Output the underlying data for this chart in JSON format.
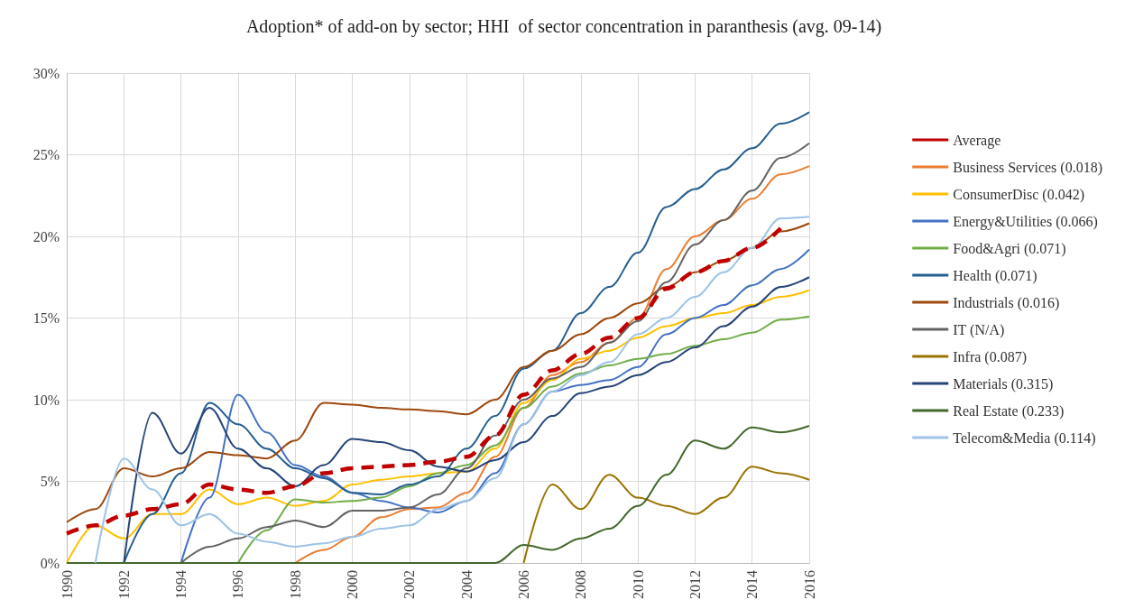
{
  "chart_data": {
    "type": "line",
    "title": "Adoption* of add-on by sector; HHI  of sector concentration in paranthesis (avg. 09-14)",
    "x": [
      1990,
      1991,
      1992,
      1993,
      1994,
      1995,
      1996,
      1997,
      1998,
      1999,
      2000,
      2001,
      2002,
      2003,
      2004,
      2005,
      2006,
      2007,
      2008,
      2009,
      2010,
      2011,
      2012,
      2013,
      2014,
      2015,
      2016
    ],
    "xlim": [
      1990,
      2016
    ],
    "xticks": [
      1990,
      1992,
      1994,
      1996,
      1998,
      2000,
      2002,
      2004,
      2006,
      2008,
      2010,
      2012,
      2014,
      2016
    ],
    "ylim": [
      0,
      30
    ],
    "yticks": [
      {
        "value": 0,
        "label": "0%"
      },
      {
        "value": 5,
        "label": "5%"
      },
      {
        "value": 10,
        "label": "10%"
      },
      {
        "value": 15,
        "label": "15%"
      },
      {
        "value": 20,
        "label": "20%"
      },
      {
        "value": 25,
        "label": "25%"
      },
      {
        "value": 30,
        "label": "30%"
      }
    ],
    "grid": true,
    "legend": "right",
    "marker": "none",
    "series": [
      {
        "name": "Average",
        "color": "#c00000",
        "line_style": "dashed",
        "values": [
          1.8,
          2.3,
          2.9,
          3.3,
          3.6,
          4.8,
          4.5,
          4.3,
          4.7,
          5.5,
          5.8,
          5.9,
          6.0,
          6.2,
          6.5,
          7.8,
          10.3,
          11.8,
          12.8,
          13.8,
          15.0,
          16.8,
          17.8,
          18.5,
          19.3,
          20.5,
          null
        ]
      },
      {
        "name": "Business Services (0.018)",
        "color": "#ed7d31",
        "values": [
          null,
          null,
          null,
          null,
          null,
          null,
          null,
          null,
          0,
          0.8,
          1.6,
          2.8,
          3.3,
          3.4,
          4.3,
          6.5,
          9.5,
          11.5,
          12.3,
          13.5,
          15.0,
          18.0,
          20.0,
          21.0,
          22.3,
          23.8,
          24.3
        ]
      },
      {
        "name": "ConsumerDisc (0.042)",
        "color": "#ffc000",
        "values": [
          0,
          2.3,
          1.5,
          3.0,
          3.0,
          4.5,
          3.6,
          4.0,
          3.5,
          3.8,
          4.8,
          5.1,
          5.3,
          5.5,
          5.6,
          7.0,
          9.8,
          11.2,
          12.5,
          13.0,
          13.8,
          14.5,
          15.0,
          15.3,
          15.8,
          16.3,
          16.7
        ]
      },
      {
        "name": "Energy&Utilities (0.066)",
        "color": "#4472c4",
        "values": [
          null,
          null,
          null,
          null,
          0,
          4.0,
          10.3,
          8.0,
          6.0,
          5.3,
          4.3,
          3.8,
          3.4,
          3.1,
          3.8,
          5.5,
          8.5,
          10.5,
          10.9,
          11.2,
          12.0,
          14.0,
          15.0,
          15.8,
          17.0,
          18.0,
          19.2
        ]
      },
      {
        "name": "Food&Agri (0.071)",
        "color": "#70ad47",
        "values": [
          null,
          null,
          null,
          null,
          null,
          null,
          0,
          2.0,
          3.9,
          3.7,
          3.8,
          4.0,
          4.7,
          5.5,
          6.0,
          7.2,
          9.5,
          10.8,
          11.6,
          12.1,
          12.5,
          12.8,
          13.3,
          13.7,
          14.1,
          14.9,
          15.1
        ]
      },
      {
        "name": "Health (0.071)",
        "color": "#255e91",
        "values": [
          null,
          null,
          0,
          3.0,
          5.5,
          9.8,
          8.5,
          7.0,
          5.8,
          5.2,
          4.3,
          4.2,
          4.8,
          5.3,
          7.0,
          9.0,
          11.9,
          13.0,
          15.3,
          16.9,
          19.0,
          21.8,
          22.9,
          24.1,
          25.4,
          26.9,
          27.6
        ]
      },
      {
        "name": "Industrials (0.016)",
        "color": "#9e480e",
        "values": [
          2.5,
          3.3,
          5.8,
          5.3,
          5.8,
          6.8,
          6.6,
          6.4,
          7.5,
          9.8,
          9.7,
          9.5,
          9.4,
          9.3,
          9.1,
          10.0,
          12.0,
          13.0,
          14.0,
          15.0,
          15.9,
          16.9,
          17.8,
          18.5,
          19.3,
          20.3,
          20.8
        ]
      },
      {
        "name": "IT (N/A)",
        "color": "#636363",
        "values": [
          null,
          null,
          null,
          null,
          0,
          1.0,
          1.5,
          2.2,
          2.6,
          2.2,
          3.2,
          3.2,
          3.4,
          4.2,
          5.8,
          7.8,
          10.0,
          11.3,
          12.0,
          13.5,
          14.8,
          17.2,
          19.5,
          21.0,
          22.8,
          24.8,
          25.7
        ]
      },
      {
        "name": "Infra (0.087)",
        "color": "#997300",
        "values": [
          null,
          null,
          null,
          null,
          null,
          null,
          null,
          null,
          null,
          null,
          null,
          null,
          null,
          null,
          null,
          null,
          0,
          4.8,
          3.3,
          5.4,
          4.0,
          3.5,
          3.0,
          4.0,
          5.9,
          5.5,
          5.1
        ]
      },
      {
        "name": "Materials (0.315)",
        "color": "#264478",
        "values": [
          null,
          null,
          0,
          9.2,
          6.7,
          9.5,
          7.0,
          5.8,
          4.7,
          6.0,
          7.6,
          7.4,
          6.9,
          5.9,
          5.6,
          6.3,
          7.4,
          9.0,
          10.4,
          10.8,
          11.5,
          12.3,
          13.2,
          14.5,
          15.7,
          16.9,
          17.5
        ]
      },
      {
        "name": "Real Estate (0.233)",
        "color": "#43682b",
        "values": [
          0,
          0,
          0,
          0,
          0,
          0,
          0,
          0,
          0,
          0,
          0,
          0,
          0,
          0,
          0,
          0,
          1.1,
          0.8,
          1.5,
          2.1,
          3.5,
          5.4,
          7.5,
          7.0,
          8.3,
          8.0,
          8.4
        ]
      },
      {
        "name": "Telecom&Media (0.114)",
        "color": "#9dc3e6",
        "values": [
          null,
          0,
          6.4,
          4.5,
          2.3,
          3.0,
          1.8,
          1.3,
          1.0,
          1.2,
          1.6,
          2.1,
          2.3,
          3.3,
          3.8,
          5.2,
          8.5,
          10.5,
          11.5,
          12.3,
          14.0,
          15.0,
          16.3,
          17.8,
          19.3,
          21.1,
          21.2
        ]
      }
    ]
  }
}
